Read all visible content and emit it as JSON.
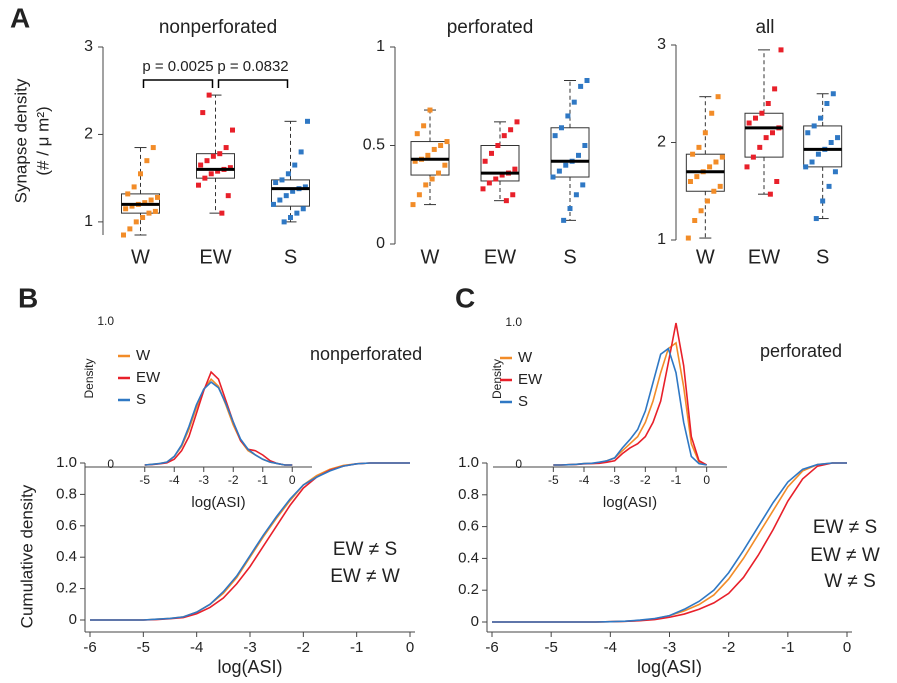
{
  "chart_data": [
    {
      "type": "box",
      "panel": "A",
      "title": "nonperforated",
      "ylabel": [
        "Synapse density",
        "(# / μ m²)"
      ],
      "categories": [
        "W",
        "EW",
        "S"
      ],
      "colors": [
        "#f28c28",
        "#e8202a",
        "#2f78c4"
      ],
      "ylim": [
        0.85,
        3
      ],
      "yticks": [
        1,
        2,
        3
      ],
      "boxes": [
        {
          "whislo": 0.85,
          "q1": 1.1,
          "med": 1.2,
          "q3": 1.32,
          "whishi": 1.85,
          "points": [
            0.85,
            0.92,
            1.0,
            1.05,
            1.1,
            1.12,
            1.15,
            1.18,
            1.2,
            1.22,
            1.25,
            1.28,
            1.32,
            1.4,
            1.55,
            1.7,
            1.85
          ]
        },
        {
          "whislo": 1.1,
          "q1": 1.5,
          "med": 1.6,
          "q3": 1.78,
          "whishi": 2.45,
          "points": [
            1.1,
            1.3,
            1.42,
            1.5,
            1.55,
            1.58,
            1.6,
            1.62,
            1.65,
            1.7,
            1.75,
            1.78,
            1.85,
            2.05,
            2.25,
            2.45
          ]
        },
        {
          "whislo": 1.0,
          "q1": 1.18,
          "med": 1.38,
          "q3": 1.48,
          "whishi": 2.15,
          "points": [
            1.0,
            1.05,
            1.1,
            1.15,
            1.2,
            1.25,
            1.3,
            1.35,
            1.38,
            1.4,
            1.45,
            1.48,
            1.55,
            1.65,
            1.8,
            2.15
          ]
        }
      ],
      "comparisons": [
        {
          "label": "p = 0.0025",
          "groups": [
            "W",
            "EW"
          ]
        },
        {
          "label": "p = 0.0832",
          "groups": [
            "EW",
            "S"
          ]
        }
      ]
    },
    {
      "type": "box",
      "title": "perforated",
      "categories": [
        "W",
        "EW",
        "S"
      ],
      "colors": [
        "#f28c28",
        "#e8202a",
        "#2f78c4"
      ],
      "ylim": [
        0,
        1
      ],
      "yticks": [
        0,
        0.5,
        1
      ],
      "boxes": [
        {
          "whislo": 0.2,
          "q1": 0.35,
          "med": 0.43,
          "q3": 0.52,
          "whishi": 0.68,
          "points": [
            0.2,
            0.25,
            0.3,
            0.33,
            0.36,
            0.4,
            0.42,
            0.43,
            0.45,
            0.48,
            0.5,
            0.52,
            0.56,
            0.6,
            0.68
          ]
        },
        {
          "whislo": 0.22,
          "q1": 0.32,
          "med": 0.36,
          "q3": 0.5,
          "whishi": 0.62,
          "points": [
            0.22,
            0.25,
            0.28,
            0.31,
            0.33,
            0.35,
            0.36,
            0.38,
            0.42,
            0.46,
            0.5,
            0.55,
            0.58,
            0.62
          ]
        },
        {
          "whislo": 0.12,
          "q1": 0.34,
          "med": 0.42,
          "q3": 0.59,
          "whishi": 0.83,
          "points": [
            0.12,
            0.18,
            0.25,
            0.3,
            0.34,
            0.37,
            0.4,
            0.42,
            0.45,
            0.5,
            0.55,
            0.59,
            0.65,
            0.72,
            0.8,
            0.83
          ]
        }
      ]
    },
    {
      "type": "box",
      "title": "all",
      "categories": [
        "W",
        "EW",
        "S"
      ],
      "colors": [
        "#f28c28",
        "#e8202a",
        "#2f78c4"
      ],
      "ylim": [
        1,
        3
      ],
      "yticks": [
        1,
        2,
        3
      ],
      "boxes": [
        {
          "whislo": 1.02,
          "q1": 1.5,
          "med": 1.7,
          "q3": 1.88,
          "whishi": 2.47,
          "points": [
            1.02,
            1.2,
            1.3,
            1.4,
            1.5,
            1.55,
            1.6,
            1.65,
            1.7,
            1.75,
            1.8,
            1.85,
            1.88,
            1.95,
            2.1,
            2.3,
            2.47
          ]
        },
        {
          "whislo": 1.47,
          "q1": 1.85,
          "med": 2.15,
          "q3": 2.3,
          "whishi": 2.95,
          "points": [
            1.47,
            1.6,
            1.75,
            1.85,
            1.95,
            2.05,
            2.1,
            2.15,
            2.2,
            2.25,
            2.3,
            2.4,
            2.55,
            2.95
          ]
        },
        {
          "whislo": 1.22,
          "q1": 1.75,
          "med": 1.93,
          "q3": 2.17,
          "whishi": 2.5,
          "points": [
            1.22,
            1.4,
            1.55,
            1.7,
            1.75,
            1.8,
            1.88,
            1.93,
            2.0,
            2.05,
            2.1,
            2.17,
            2.25,
            2.4,
            2.5
          ]
        }
      ]
    },
    {
      "type": "line",
      "panel": "B",
      "xlabel": "log(ASI)",
      "ylabel": "Cumulative density",
      "xlim": [
        -6,
        0
      ],
      "xticks": [
        -6,
        -5,
        -4,
        -3,
        -2,
        -1,
        0
      ],
      "ylim": [
        0,
        1
      ],
      "yticks": [
        0,
        0.2,
        0.4,
        0.6,
        0.8,
        {
          "value": 1,
          "label": "1.0"
        }
      ],
      "x": [
        -6,
        -5.75,
        -5.5,
        -5.25,
        -5,
        -4.75,
        -4.5,
        -4.25,
        -4,
        -3.75,
        -3.5,
        -3.25,
        -3,
        -2.75,
        -2.5,
        -2.25,
        -2,
        -1.75,
        -1.5,
        -1.25,
        -1,
        -0.75,
        -0.5,
        -0.25,
        0
      ],
      "series": [
        {
          "color": "#f28c28",
          "values": [
            0,
            0,
            0,
            0,
            0,
            0.005,
            0.01,
            0.02,
            0.05,
            0.1,
            0.17,
            0.27,
            0.4,
            0.53,
            0.65,
            0.76,
            0.86,
            0.92,
            0.96,
            0.985,
            0.995,
            1,
            1,
            1,
            1
          ]
        },
        {
          "color": "#e8202a",
          "values": [
            0,
            0,
            0,
            0,
            0,
            0.003,
            0.008,
            0.015,
            0.04,
            0.08,
            0.14,
            0.23,
            0.34,
            0.47,
            0.6,
            0.73,
            0.84,
            0.91,
            0.955,
            0.98,
            0.995,
            1,
            1,
            1,
            1
          ]
        },
        {
          "color": "#2f78c4",
          "values": [
            0,
            0,
            0,
            0,
            0,
            0.005,
            0.01,
            0.02,
            0.05,
            0.1,
            0.18,
            0.28,
            0.41,
            0.54,
            0.66,
            0.77,
            0.86,
            0.91,
            0.95,
            0.98,
            0.995,
            1,
            1,
            1,
            1
          ]
        }
      ],
      "annotations": [
        "EW ≠ S",
        "EW ≠ W"
      ]
    },
    {
      "type": "inset-line",
      "title": "nonperforated",
      "xlabel": "log(ASI)",
      "ylabel": "Density",
      "xlim": [
        -5.5,
        0.5
      ],
      "xticks": [
        -5,
        -4,
        -3,
        -2,
        -1,
        0
      ],
      "ylim": [
        0,
        1
      ],
      "yticks": [
        0,
        {
          "value": 1,
          "label": "1.0"
        }
      ],
      "legend": "upper left",
      "x": [
        -5,
        -4.75,
        -4.5,
        -4.25,
        -4,
        -3.75,
        -3.5,
        -3.25,
        -3,
        -2.75,
        -2.5,
        -2.25,
        -2,
        -1.75,
        -1.5,
        -1.25,
        -1,
        -0.75,
        -0.5,
        -0.25,
        0
      ],
      "series": [
        {
          "name": "W",
          "color": "#f28c28",
          "values": [
            0,
            0.005,
            0.01,
            0.02,
            0.06,
            0.13,
            0.25,
            0.4,
            0.53,
            0.6,
            0.55,
            0.42,
            0.28,
            0.17,
            0.1,
            0.07,
            0.04,
            0.02,
            0.01,
            0,
            0
          ]
        },
        {
          "name": "EW",
          "color": "#e8202a",
          "values": [
            0,
            0.003,
            0.008,
            0.015,
            0.04,
            0.1,
            0.2,
            0.36,
            0.52,
            0.65,
            0.6,
            0.45,
            0.3,
            0.17,
            0.11,
            0.1,
            0.07,
            0.03,
            0.01,
            0,
            0
          ]
        },
        {
          "name": "S",
          "color": "#2f78c4",
          "values": [
            0,
            0.005,
            0.01,
            0.02,
            0.06,
            0.14,
            0.27,
            0.42,
            0.53,
            0.58,
            0.54,
            0.43,
            0.3,
            0.18,
            0.11,
            0.07,
            0.04,
            0.02,
            0.01,
            0,
            0
          ]
        }
      ]
    },
    {
      "type": "line",
      "panel": "C",
      "xlabel": "log(ASI)",
      "xlim": [
        -6,
        0
      ],
      "xticks": [
        -6,
        -5,
        -4,
        -3,
        -2,
        -1,
        0
      ],
      "ylim": [
        0,
        1
      ],
      "yticks": [
        0,
        0.2,
        0.4,
        0.6,
        0.8,
        {
          "value": 1,
          "label": "1.0"
        }
      ],
      "x": [
        -6,
        -5.75,
        -5.5,
        -5.25,
        -5,
        -4.75,
        -4.5,
        -4.25,
        -4,
        -3.75,
        -3.5,
        -3.25,
        -3,
        -2.75,
        -2.5,
        -2.25,
        -2,
        -1.75,
        -1.5,
        -1.25,
        -1,
        -0.75,
        -0.5,
        -0.25,
        0
      ],
      "series": [
        {
          "color": "#f28c28",
          "values": [
            0,
            0,
            0,
            0,
            0,
            0,
            0,
            0,
            0.002,
            0.004,
            0.01,
            0.02,
            0.04,
            0.07,
            0.11,
            0.17,
            0.27,
            0.4,
            0.55,
            0.7,
            0.85,
            0.95,
            0.99,
            1,
            1
          ]
        },
        {
          "color": "#e8202a",
          "values": [
            0,
            0,
            0,
            0,
            0,
            0,
            0,
            0,
            0.002,
            0.004,
            0.008,
            0.015,
            0.03,
            0.05,
            0.08,
            0.12,
            0.18,
            0.28,
            0.42,
            0.58,
            0.76,
            0.9,
            0.98,
            1,
            1
          ]
        },
        {
          "color": "#2f78c4",
          "values": [
            0,
            0,
            0,
            0,
            0,
            0,
            0,
            0,
            0.002,
            0.005,
            0.012,
            0.022,
            0.04,
            0.08,
            0.13,
            0.2,
            0.31,
            0.45,
            0.6,
            0.75,
            0.88,
            0.96,
            0.99,
            1,
            1
          ]
        }
      ],
      "annotations": [
        "EW ≠ S",
        "EW ≠ W",
        "W ≠ S"
      ]
    },
    {
      "type": "inset-line",
      "title": "perforated",
      "xlabel": "log(ASI)",
      "ylabel": "Density",
      "xlim": [
        -5.5,
        0.5
      ],
      "xticks": [
        -5,
        -4,
        -3,
        -2,
        -1,
        0
      ],
      "ylim": [
        0,
        1
      ],
      "yticks": [
        0,
        {
          "value": 1,
          "label": "1.0"
        }
      ],
      "legend": "upper left",
      "x": [
        -5,
        -4.75,
        -4.5,
        -4.25,
        -4,
        -3.75,
        -3.5,
        -3.25,
        -3,
        -2.75,
        -2.5,
        -2.25,
        -2,
        -1.75,
        -1.5,
        -1.25,
        -1,
        -0.75,
        -0.5,
        -0.25,
        0
      ],
      "series": [
        {
          "name": "W",
          "color": "#f28c28",
          "values": [
            0,
            0,
            0.002,
            0.005,
            0.01,
            0.01,
            0.015,
            0.03,
            0.05,
            0.1,
            0.15,
            0.2,
            0.3,
            0.45,
            0.65,
            0.82,
            0.86,
            0.55,
            0.15,
            0.02,
            0
          ]
        },
        {
          "name": "EW",
          "color": "#e8202a",
          "values": [
            0,
            0,
            0.002,
            0.004,
            0.008,
            0.01,
            0.012,
            0.02,
            0.03,
            0.08,
            0.12,
            0.15,
            0.2,
            0.3,
            0.45,
            0.72,
            1.0,
            0.7,
            0.2,
            0.03,
            0
          ]
        },
        {
          "name": "S",
          "color": "#2f78c4",
          "values": [
            0,
            0,
            0.002,
            0.005,
            0.01,
            0.012,
            0.02,
            0.03,
            0.05,
            0.12,
            0.18,
            0.25,
            0.38,
            0.58,
            0.78,
            0.82,
            0.65,
            0.3,
            0.06,
            0.01,
            0
          ]
        }
      ]
    }
  ]
}
